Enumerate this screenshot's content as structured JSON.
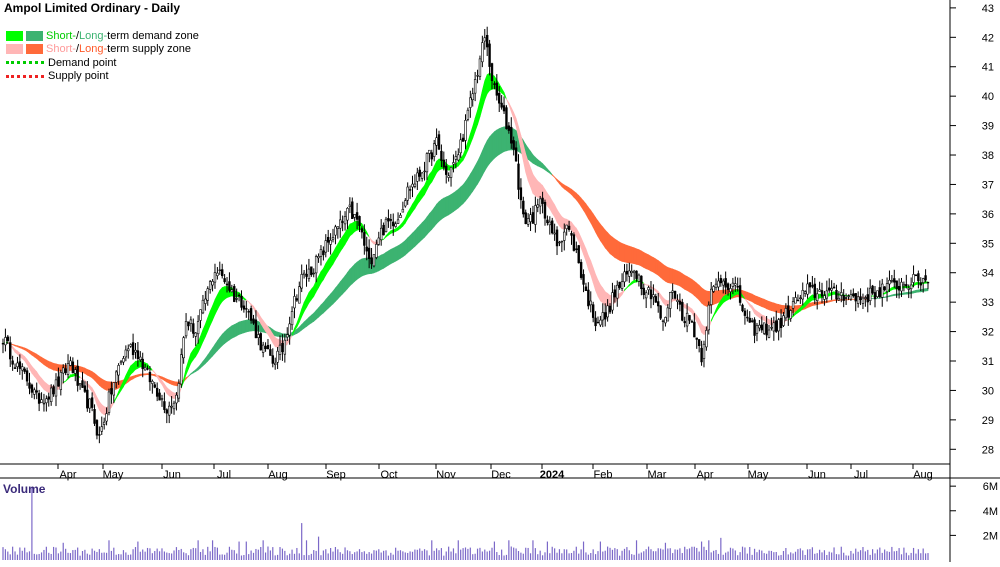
{
  "chart_data": {
    "type": "candlestick",
    "title": "Ampol Limited Ordinary - Daily",
    "legend": [
      {
        "swatches": [
          "#00ff00",
          "#3cb371"
        ],
        "parts": [
          {
            "text": "Short-",
            "color": "#00cc00"
          },
          {
            "text": " / ",
            "color": "#000000"
          },
          {
            "text": "Long-",
            "color": "#3cb371"
          },
          {
            "text": "term demand zone",
            "color": "#000000"
          }
        ]
      },
      {
        "swatches": [
          "#ffb6b6",
          "#ff6a3a"
        ],
        "parts": [
          {
            "text": "Short-",
            "color": "#ff9a9a"
          },
          {
            "text": " / ",
            "color": "#000000"
          },
          {
            "text": "Long-",
            "color": "#ff5a2a"
          },
          {
            "text": "term supply zone",
            "color": "#000000"
          }
        ]
      },
      {
        "dotted": "#00cc00",
        "parts": [
          {
            "text": "Demand point",
            "color": "#000000"
          }
        ]
      },
      {
        "dotted": "#ee2222",
        "parts": [
          {
            "text": "Supply point",
            "color": "#000000"
          }
        ]
      }
    ],
    "legend_position": "top-left",
    "x_tick_labels": [
      "Apr",
      "May",
      "Jun",
      "Jul",
      "Aug",
      "Sep",
      "Oct",
      "Nov",
      "Dec",
      "2024",
      "Feb",
      "Mar",
      "Apr",
      "May",
      "Jun",
      "Jul",
      "Aug"
    ],
    "y_ticks": [
      28,
      29,
      30,
      31,
      32,
      33,
      34,
      35,
      36,
      37,
      38,
      39,
      40,
      41,
      42,
      43
    ],
    "ylim": [
      27.5,
      43.2
    ],
    "price_anchors": {
      "x": [
        0,
        6,
        10,
        14,
        20,
        24,
        28,
        32,
        36,
        40,
        44,
        48,
        52,
        56,
        60,
        64,
        68,
        72,
        76,
        80,
        84,
        88,
        92,
        96,
        100,
        104,
        108,
        112,
        116,
        120,
        124,
        128,
        132,
        136,
        140,
        144,
        148,
        152,
        156,
        160,
        164,
        168,
        172,
        176,
        180,
        184,
        188,
        192,
        196,
        200,
        204,
        208,
        212,
        216,
        220,
        224,
        226,
        230,
        234,
        238,
        242,
        246,
        250,
        254,
        258,
        262,
        266,
        270,
        274,
        278,
        282,
        286,
        290,
        294,
        298,
        304,
        310,
        316,
        322,
        326,
        330,
        334,
        338,
        341,
        346,
        350,
        354,
        358,
        362,
        366,
        372,
        378,
        384
      ],
      "y": [
        31.8,
        30.8,
        30.4,
        29.7,
        29.9,
        30.4,
        31.0,
        30.0,
        29.5,
        28.4,
        29.7,
        30.8,
        31.5,
        31.3,
        30.5,
        30.0,
        29.4,
        29.8,
        32.4,
        32.0,
        33.1,
        34.1,
        33.8,
        33.2,
        33.0,
        32.2,
        31.4,
        31.0,
        31.4,
        32.8,
        33.8,
        34.1,
        34.6,
        35.2,
        35.6,
        36.1,
        35.6,
        34.3,
        35.3,
        35.7,
        35.9,
        36.8,
        37.2,
        37.8,
        38.4,
        37.3,
        37.8,
        39.0,
        40.5,
        42.0,
        40.2,
        39.3,
        38.3,
        35.8,
        35.9,
        36.5,
        35.7,
        35.0,
        35.6,
        34.7,
        33.3,
        32.4,
        32.5,
        33.3,
        33.8,
        34.2,
        33.5,
        33.3,
        32.2,
        33.5,
        32.6,
        32.3,
        31.2,
        33.3,
        33.8,
        33.5,
        32.1,
        32.1,
        32.2,
        32.7,
        33.1,
        33.4,
        33.3,
        33.4,
        33.2,
        33.3,
        33.1,
        33.2,
        33.3,
        33.5,
        33.6,
        33.7,
        33.8
      ]
    },
    "zones": {
      "short_term_demand": "#00ff00",
      "long_term_demand": "#3cb371",
      "short_term_supply": "#ffb6b6",
      "long_term_supply": "#ff6a3a"
    },
    "volume": {
      "title": "Volume",
      "y_ticks": [
        2,
        4,
        6
      ],
      "y_tick_labels": [
        "2M",
        "4M",
        "6M"
      ],
      "ylim": [
        0,
        6.5
      ],
      "unit": "million shares",
      "bar_color": "#7b68c8",
      "spikes": {
        "x": [
          12,
          25,
          44,
          56,
          81,
          87,
          98,
          101,
          108,
          124,
          126,
          131,
          178,
          189,
          204,
          210,
          220,
          226,
          241,
          248,
          263,
          275,
          290,
          293,
          298
        ],
        "v": [
          5.9,
          1.4,
          1.6,
          1.5,
          1.6,
          1.6,
          1.5,
          1.5,
          1.6,
          3.0,
          1.6,
          1.9,
          1.6,
          1.6,
          1.5,
          1.6,
          1.6,
          1.5,
          1.5,
          1.5,
          1.6,
          1.4,
          1.5,
          1.6,
          1.8
        ]
      }
    },
    "grid": false
  }
}
